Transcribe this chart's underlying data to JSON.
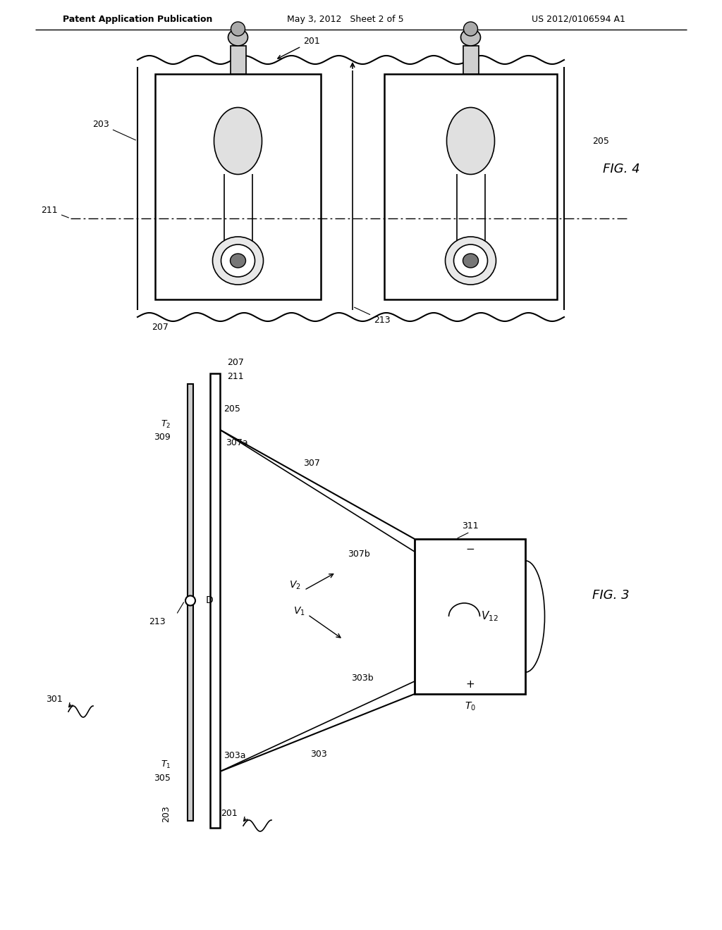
{
  "bg_color": "#ffffff",
  "line_color": "#000000",
  "header_left": "Patent Application Publication",
  "header_mid": "May 3, 2012   Sheet 2 of 5",
  "header_right": "US 2012/0106594 A1",
  "fig4_label": "FIG. 4",
  "fig3_label": "FIG. 3"
}
